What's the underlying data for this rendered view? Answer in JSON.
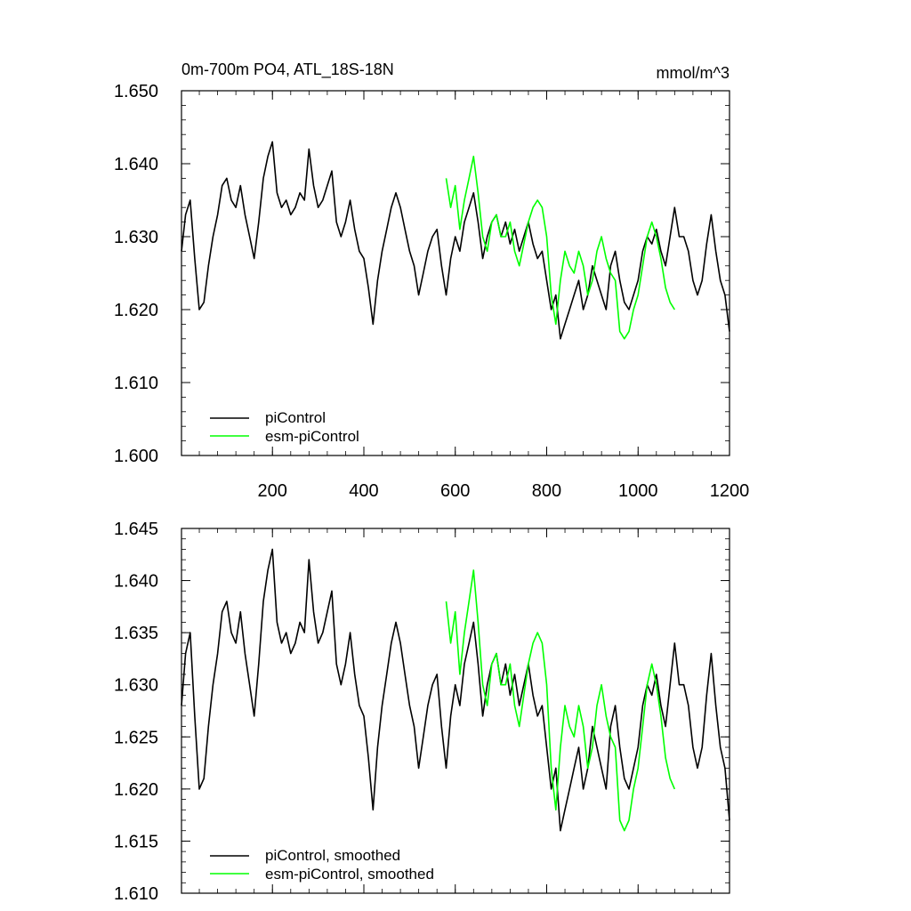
{
  "chart_data": [
    {
      "type": "line",
      "title": "0m-700m PO4, ATL_18S-18N",
      "units": "mmol/m^3",
      "xlabel": "",
      "ylabel": "",
      "xlim": [
        1,
        1200
      ],
      "ylim": [
        1.6,
        1.65
      ],
      "x_ticks": [
        200,
        400,
        600,
        800,
        1000,
        1200
      ],
      "x_tick_labels": [
        "200",
        "400",
        "600",
        "800",
        "1000",
        "1200"
      ],
      "y_ticks": [
        1.6,
        1.61,
        1.62,
        1.63,
        1.64,
        1.65
      ],
      "y_tick_labels": [
        "1.600",
        "1.610",
        "1.620",
        "1.630",
        "1.640",
        "1.650"
      ],
      "legend_position": "bottom-left",
      "series": [
        {
          "name": "piControl",
          "color": "#000000",
          "x": [
            1,
            10,
            20,
            30,
            40,
            50,
            60,
            70,
            80,
            90,
            100,
            110,
            120,
            130,
            140,
            150,
            160,
            170,
            180,
            190,
            200,
            210,
            220,
            230,
            240,
            250,
            260,
            270,
            280,
            290,
            300,
            310,
            320,
            330,
            340,
            350,
            360,
            370,
            380,
            390,
            400,
            410,
            420,
            430,
            440,
            450,
            460,
            470,
            480,
            490,
            500,
            510,
            520,
            530,
            540,
            550,
            560,
            570,
            580,
            590,
            600,
            610,
            620,
            630,
            640,
            650,
            660,
            670,
            680,
            690,
            700,
            710,
            720,
            730,
            740,
            750,
            760,
            770,
            780,
            790,
            800,
            810,
            820,
            830,
            840,
            850,
            860,
            870,
            880,
            890,
            900,
            910,
            920,
            930,
            940,
            950,
            960,
            970,
            980,
            990,
            1000,
            1010,
            1020,
            1030,
            1040,
            1050,
            1060,
            1070,
            1080,
            1090,
            1100,
            1110,
            1120,
            1130,
            1140,
            1150,
            1160,
            1170,
            1180,
            1190,
            1200
          ],
          "values": [
            1.628,
            1.633,
            1.635,
            1.627,
            1.62,
            1.621,
            1.626,
            1.63,
            1.633,
            1.637,
            1.638,
            1.635,
            1.634,
            1.637,
            1.633,
            1.63,
            1.627,
            1.632,
            1.638,
            1.641,
            1.643,
            1.636,
            1.634,
            1.635,
            1.633,
            1.634,
            1.636,
            1.635,
            1.642,
            1.637,
            1.634,
            1.635,
            1.637,
            1.639,
            1.632,
            1.63,
            1.632,
            1.635,
            1.631,
            1.628,
            1.627,
            1.623,
            1.618,
            1.624,
            1.628,
            1.631,
            1.634,
            1.636,
            1.634,
            1.631,
            1.628,
            1.626,
            1.622,
            1.625,
            1.628,
            1.63,
            1.631,
            1.626,
            1.622,
            1.627,
            1.63,
            1.628,
            1.632,
            1.634,
            1.636,
            1.632,
            1.627,
            1.63,
            1.632,
            1.633,
            1.63,
            1.632,
            1.629,
            1.631,
            1.628,
            1.63,
            1.632,
            1.629,
            1.627,
            1.628,
            1.624,
            1.62,
            1.622,
            1.616,
            1.618,
            1.62,
            1.622,
            1.624,
            1.62,
            1.622,
            1.626,
            1.624,
            1.622,
            1.62,
            1.626,
            1.628,
            1.624,
            1.621,
            1.62,
            1.622,
            1.624,
            1.628,
            1.63,
            1.629,
            1.631,
            1.628,
            1.626,
            1.63,
            1.634,
            1.63,
            1.63,
            1.628,
            1.624,
            1.622,
            1.624,
            1.629,
            1.633,
            1.628,
            1.624,
            1.622,
            1.617
          ]
        },
        {
          "name": "esm-piControl",
          "color": "#00ff00",
          "x": [
            580,
            590,
            600,
            610,
            620,
            630,
            640,
            650,
            660,
            670,
            680,
            690,
            700,
            710,
            720,
            730,
            740,
            750,
            760,
            770,
            780,
            790,
            800,
            810,
            820,
            830,
            840,
            850,
            860,
            870,
            880,
            890,
            900,
            910,
            920,
            930,
            940,
            950,
            960,
            970,
            980,
            990,
            1000,
            1010,
            1020,
            1030,
            1040,
            1050,
            1060,
            1070,
            1080
          ],
          "values": [
            1.638,
            1.634,
            1.637,
            1.631,
            1.635,
            1.638,
            1.641,
            1.636,
            1.63,
            1.628,
            1.632,
            1.633,
            1.63,
            1.63,
            1.632,
            1.628,
            1.626,
            1.629,
            1.632,
            1.634,
            1.635,
            1.634,
            1.63,
            1.622,
            1.618,
            1.624,
            1.628,
            1.626,
            1.625,
            1.628,
            1.626,
            1.622,
            1.624,
            1.628,
            1.63,
            1.627,
            1.625,
            1.624,
            1.617,
            1.616,
            1.617,
            1.62,
            1.622,
            1.626,
            1.63,
            1.632,
            1.63,
            1.627,
            1.623,
            1.621,
            1.62
          ]
        }
      ]
    },
    {
      "type": "line",
      "title": "",
      "xlabel": "",
      "ylabel": "",
      "xlim": [
        1,
        1200
      ],
      "ylim": [
        1.61,
        1.645
      ],
      "x_ticks": [
        200,
        400,
        600,
        800,
        1000,
        1200
      ],
      "y_ticks": [
        1.61,
        1.615,
        1.62,
        1.625,
        1.63,
        1.635,
        1.64,
        1.645
      ],
      "y_tick_labels": [
        "1.610",
        "1.615",
        "1.620",
        "1.625",
        "1.630",
        "1.635",
        "1.640",
        "1.645"
      ],
      "legend_position": "bottom-left",
      "series": [
        {
          "name": "piControl, smoothed",
          "color": "#000000",
          "x": [
            1,
            10,
            20,
            30,
            40,
            50,
            60,
            70,
            80,
            90,
            100,
            110,
            120,
            130,
            140,
            150,
            160,
            170,
            180,
            190,
            200,
            210,
            220,
            230,
            240,
            250,
            260,
            270,
            280,
            290,
            300,
            310,
            320,
            330,
            340,
            350,
            360,
            370,
            380,
            390,
            400,
            410,
            420,
            430,
            440,
            450,
            460,
            470,
            480,
            490,
            500,
            510,
            520,
            530,
            540,
            550,
            560,
            570,
            580,
            590,
            600,
            610,
            620,
            630,
            640,
            650,
            660,
            670,
            680,
            690,
            700,
            710,
            720,
            730,
            740,
            750,
            760,
            770,
            780,
            790,
            800,
            810,
            820,
            830,
            840,
            850,
            860,
            870,
            880,
            890,
            900,
            910,
            920,
            930,
            940,
            950,
            960,
            970,
            980,
            990,
            1000,
            1010,
            1020,
            1030,
            1040,
            1050,
            1060,
            1070,
            1080,
            1090,
            1100,
            1110,
            1120,
            1130,
            1140,
            1150,
            1160,
            1170,
            1180,
            1190,
            1200
          ],
          "values": [
            1.628,
            1.633,
            1.635,
            1.627,
            1.62,
            1.621,
            1.626,
            1.63,
            1.633,
            1.637,
            1.638,
            1.635,
            1.634,
            1.637,
            1.633,
            1.63,
            1.627,
            1.632,
            1.638,
            1.641,
            1.643,
            1.636,
            1.634,
            1.635,
            1.633,
            1.634,
            1.636,
            1.635,
            1.642,
            1.637,
            1.634,
            1.635,
            1.637,
            1.639,
            1.632,
            1.63,
            1.632,
            1.635,
            1.631,
            1.628,
            1.627,
            1.623,
            1.618,
            1.624,
            1.628,
            1.631,
            1.634,
            1.636,
            1.634,
            1.631,
            1.628,
            1.626,
            1.622,
            1.625,
            1.628,
            1.63,
            1.631,
            1.626,
            1.622,
            1.627,
            1.63,
            1.628,
            1.632,
            1.634,
            1.636,
            1.632,
            1.627,
            1.63,
            1.632,
            1.633,
            1.63,
            1.632,
            1.629,
            1.631,
            1.628,
            1.63,
            1.632,
            1.629,
            1.627,
            1.628,
            1.624,
            1.62,
            1.622,
            1.616,
            1.618,
            1.62,
            1.622,
            1.624,
            1.62,
            1.622,
            1.626,
            1.624,
            1.622,
            1.62,
            1.626,
            1.628,
            1.624,
            1.621,
            1.62,
            1.622,
            1.624,
            1.628,
            1.63,
            1.629,
            1.631,
            1.628,
            1.626,
            1.63,
            1.634,
            1.63,
            1.63,
            1.628,
            1.624,
            1.622,
            1.624,
            1.629,
            1.633,
            1.628,
            1.624,
            1.622,
            1.617
          ]
        },
        {
          "name": "esm-piControl, smoothed",
          "color": "#00ff00",
          "x": [
            580,
            590,
            600,
            610,
            620,
            630,
            640,
            650,
            660,
            670,
            680,
            690,
            700,
            710,
            720,
            730,
            740,
            750,
            760,
            770,
            780,
            790,
            800,
            810,
            820,
            830,
            840,
            850,
            860,
            870,
            880,
            890,
            900,
            910,
            920,
            930,
            940,
            950,
            960,
            970,
            980,
            990,
            1000,
            1010,
            1020,
            1030,
            1040,
            1050,
            1060,
            1070,
            1080
          ],
          "values": [
            1.638,
            1.634,
            1.637,
            1.631,
            1.635,
            1.638,
            1.641,
            1.636,
            1.63,
            1.628,
            1.632,
            1.633,
            1.63,
            1.63,
            1.632,
            1.628,
            1.626,
            1.629,
            1.632,
            1.634,
            1.635,
            1.634,
            1.63,
            1.622,
            1.618,
            1.624,
            1.628,
            1.626,
            1.625,
            1.628,
            1.626,
            1.622,
            1.624,
            1.628,
            1.63,
            1.627,
            1.625,
            1.624,
            1.617,
            1.616,
            1.617,
            1.62,
            1.622,
            1.626,
            1.63,
            1.632,
            1.63,
            1.627,
            1.623,
            1.621,
            1.62
          ]
        }
      ]
    }
  ]
}
